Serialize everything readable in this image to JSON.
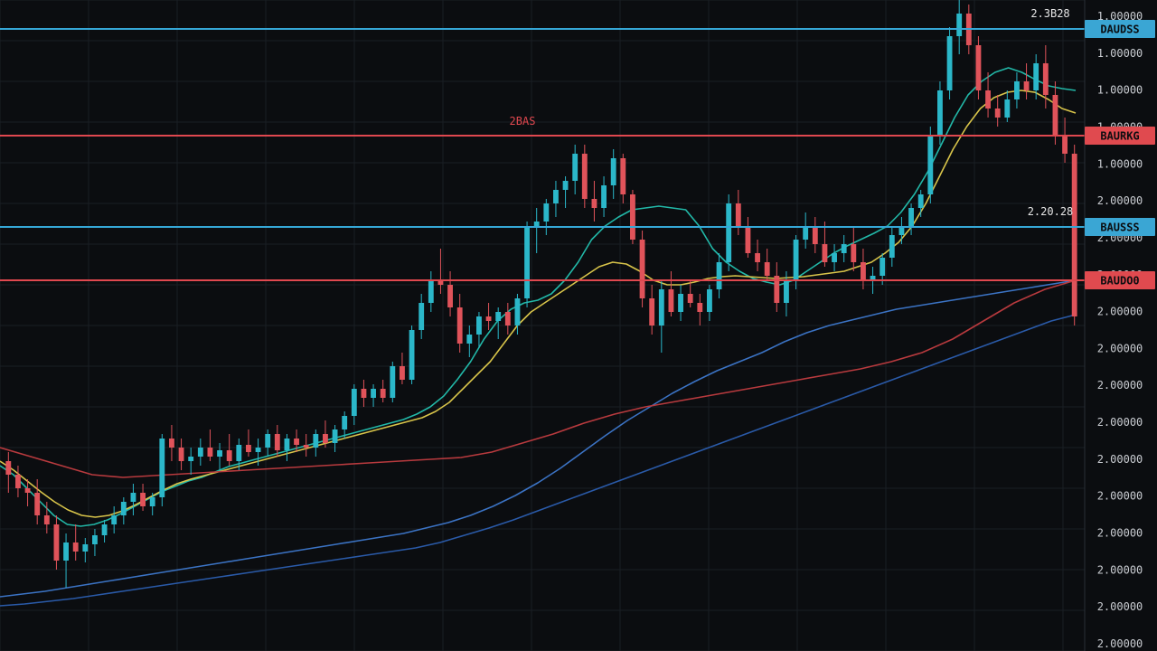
{
  "chart_data": {
    "type": "candlestick",
    "grid": true,
    "price_axis": "right",
    "colors": {
      "background": "#0b0d10",
      "grid": "#1a1e24",
      "up": "#2bb7c9",
      "down": "#e0535a",
      "level_blue": "#35a7d6",
      "level_red": "#e0484f",
      "tag_blue_bg": "#3aa6d4",
      "tag_red_bg": "#e04a4f",
      "ma_fast": "#22b8a8",
      "ma_mid": "#d8c44a",
      "ma_slow": "#3b73c4",
      "ma_red": "#b83a3e",
      "ma_long": "#2a5aa8"
    },
    "price_labels": [
      "1.00000",
      "1.00000",
      "1.00000",
      "1.00000",
      "1.00000",
      "2.00000",
      "2.00000",
      "2.00000",
      "2.00000",
      "2.00000",
      "2.00000",
      "2.00000",
      "2.00000",
      "2.00000",
      "2.00000",
      "2.00000",
      "2.00000",
      "2.00000"
    ],
    "y_range": [
      0,
      720
    ],
    "levels": [
      {
        "price": 688,
        "color": "blue",
        "tag": "DAUDSS",
        "note": "2.3B28"
      },
      {
        "price": 570,
        "color": "red",
        "tag": "BAURKG",
        "note": "2BAS"
      },
      {
        "price": 469,
        "color": "blue",
        "tag": "BAUSSS",
        "note": "2.20.28"
      },
      {
        "price": 410,
        "color": "red",
        "tag": "BAUDO0",
        "note": ""
      }
    ],
    "candles": [
      {
        "o": 210,
        "h": 220,
        "l": 175,
        "c": 195
      },
      {
        "o": 195,
        "h": 205,
        "l": 170,
        "c": 180
      },
      {
        "o": 180,
        "h": 190,
        "l": 160,
        "c": 175
      },
      {
        "o": 175,
        "h": 190,
        "l": 140,
        "c": 150
      },
      {
        "o": 150,
        "h": 165,
        "l": 130,
        "c": 140
      },
      {
        "o": 140,
        "h": 150,
        "l": 90,
        "c": 100
      },
      {
        "o": 100,
        "h": 130,
        "l": 70,
        "c": 120
      },
      {
        "o": 120,
        "h": 140,
        "l": 100,
        "c": 110
      },
      {
        "o": 110,
        "h": 125,
        "l": 98,
        "c": 118
      },
      {
        "o": 118,
        "h": 135,
        "l": 105,
        "c": 128
      },
      {
        "o": 128,
        "h": 145,
        "l": 120,
        "c": 140
      },
      {
        "o": 140,
        "h": 160,
        "l": 130,
        "c": 150
      },
      {
        "o": 150,
        "h": 170,
        "l": 140,
        "c": 165
      },
      {
        "o": 165,
        "h": 185,
        "l": 150,
        "c": 175
      },
      {
        "o": 175,
        "h": 185,
        "l": 155,
        "c": 160
      },
      {
        "o": 160,
        "h": 175,
        "l": 150,
        "c": 170
      },
      {
        "o": 170,
        "h": 240,
        "l": 160,
        "c": 235
      },
      {
        "o": 235,
        "h": 250,
        "l": 210,
        "c": 225
      },
      {
        "o": 225,
        "h": 235,
        "l": 200,
        "c": 210
      },
      {
        "o": 210,
        "h": 225,
        "l": 195,
        "c": 215
      },
      {
        "o": 215,
        "h": 235,
        "l": 205,
        "c": 225
      },
      {
        "o": 225,
        "h": 245,
        "l": 210,
        "c": 215
      },
      {
        "o": 215,
        "h": 230,
        "l": 200,
        "c": 222
      },
      {
        "o": 222,
        "h": 240,
        "l": 205,
        "c": 210
      },
      {
        "o": 210,
        "h": 235,
        "l": 200,
        "c": 228
      },
      {
        "o": 228,
        "h": 245,
        "l": 215,
        "c": 220
      },
      {
        "o": 220,
        "h": 235,
        "l": 205,
        "c": 225
      },
      {
        "o": 225,
        "h": 245,
        "l": 215,
        "c": 240
      },
      {
        "o": 240,
        "h": 250,
        "l": 215,
        "c": 222
      },
      {
        "o": 222,
        "h": 240,
        "l": 210,
        "c": 235
      },
      {
        "o": 235,
        "h": 245,
        "l": 220,
        "c": 228
      },
      {
        "o": 228,
        "h": 240,
        "l": 215,
        "c": 225
      },
      {
        "o": 225,
        "h": 245,
        "l": 215,
        "c": 240
      },
      {
        "o": 240,
        "h": 255,
        "l": 225,
        "c": 230
      },
      {
        "o": 230,
        "h": 250,
        "l": 220,
        "c": 245
      },
      {
        "o": 245,
        "h": 265,
        "l": 235,
        "c": 260
      },
      {
        "o": 260,
        "h": 295,
        "l": 250,
        "c": 290
      },
      {
        "o": 290,
        "h": 300,
        "l": 270,
        "c": 280
      },
      {
        "o": 280,
        "h": 295,
        "l": 270,
        "c": 290
      },
      {
        "o": 290,
        "h": 300,
        "l": 275,
        "c": 280
      },
      {
        "o": 280,
        "h": 320,
        "l": 275,
        "c": 315
      },
      {
        "o": 315,
        "h": 330,
        "l": 295,
        "c": 300
      },
      {
        "o": 300,
        "h": 360,
        "l": 295,
        "c": 355
      },
      {
        "o": 355,
        "h": 395,
        "l": 345,
        "c": 385
      },
      {
        "o": 385,
        "h": 420,
        "l": 375,
        "c": 410
      },
      {
        "o": 410,
        "h": 445,
        "l": 395,
        "c": 405
      },
      {
        "o": 405,
        "h": 420,
        "l": 370,
        "c": 380
      },
      {
        "o": 380,
        "h": 395,
        "l": 330,
        "c": 340
      },
      {
        "o": 340,
        "h": 360,
        "l": 325,
        "c": 350
      },
      {
        "o": 350,
        "h": 375,
        "l": 335,
        "c": 370
      },
      {
        "o": 370,
        "h": 385,
        "l": 355,
        "c": 365
      },
      {
        "o": 365,
        "h": 380,
        "l": 345,
        "c": 375
      },
      {
        "o": 375,
        "h": 385,
        "l": 350,
        "c": 360
      },
      {
        "o": 360,
        "h": 395,
        "l": 350,
        "c": 390
      },
      {
        "o": 390,
        "h": 475,
        "l": 380,
        "c": 470
      },
      {
        "o": 470,
        "h": 490,
        "l": 440,
        "c": 475
      },
      {
        "o": 475,
        "h": 500,
        "l": 460,
        "c": 495
      },
      {
        "o": 495,
        "h": 520,
        "l": 480,
        "c": 510
      },
      {
        "o": 510,
        "h": 525,
        "l": 490,
        "c": 520
      },
      {
        "o": 520,
        "h": 560,
        "l": 505,
        "c": 550
      },
      {
        "o": 550,
        "h": 560,
        "l": 490,
        "c": 500
      },
      {
        "o": 500,
        "h": 520,
        "l": 475,
        "c": 490
      },
      {
        "o": 490,
        "h": 525,
        "l": 480,
        "c": 515
      },
      {
        "o": 515,
        "h": 555,
        "l": 500,
        "c": 545
      },
      {
        "o": 545,
        "h": 550,
        "l": 495,
        "c": 505
      },
      {
        "o": 505,
        "h": 510,
        "l": 450,
        "c": 455
      },
      {
        "o": 455,
        "h": 465,
        "l": 380,
        "c": 390
      },
      {
        "o": 390,
        "h": 405,
        "l": 350,
        "c": 360
      },
      {
        "o": 360,
        "h": 410,
        "l": 330,
        "c": 400
      },
      {
        "o": 400,
        "h": 420,
        "l": 370,
        "c": 375
      },
      {
        "o": 375,
        "h": 405,
        "l": 365,
        "c": 395
      },
      {
        "o": 395,
        "h": 410,
        "l": 380,
        "c": 385
      },
      {
        "o": 385,
        "h": 395,
        "l": 360,
        "c": 375
      },
      {
        "o": 375,
        "h": 405,
        "l": 365,
        "c": 400
      },
      {
        "o": 400,
        "h": 440,
        "l": 390,
        "c": 430
      },
      {
        "o": 430,
        "h": 505,
        "l": 420,
        "c": 495
      },
      {
        "o": 495,
        "h": 510,
        "l": 460,
        "c": 470
      },
      {
        "o": 470,
        "h": 480,
        "l": 435,
        "c": 440
      },
      {
        "o": 440,
        "h": 455,
        "l": 420,
        "c": 430
      },
      {
        "o": 430,
        "h": 445,
        "l": 410,
        "c": 415
      },
      {
        "o": 415,
        "h": 430,
        "l": 375,
        "c": 385
      },
      {
        "o": 385,
        "h": 420,
        "l": 370,
        "c": 410
      },
      {
        "o": 410,
        "h": 460,
        "l": 400,
        "c": 455
      },
      {
        "o": 455,
        "h": 485,
        "l": 445,
        "c": 470
      },
      {
        "o": 470,
        "h": 480,
        "l": 440,
        "c": 450
      },
      {
        "o": 450,
        "h": 475,
        "l": 425,
        "c": 430
      },
      {
        "o": 430,
        "h": 450,
        "l": 420,
        "c": 440
      },
      {
        "o": 440,
        "h": 460,
        "l": 430,
        "c": 450
      },
      {
        "o": 450,
        "h": 470,
        "l": 420,
        "c": 430
      },
      {
        "o": 430,
        "h": 445,
        "l": 400,
        "c": 410
      },
      {
        "o": 410,
        "h": 425,
        "l": 395,
        "c": 415
      },
      {
        "o": 415,
        "h": 440,
        "l": 405,
        "c": 435
      },
      {
        "o": 435,
        "h": 470,
        "l": 425,
        "c": 460
      },
      {
        "o": 460,
        "h": 480,
        "l": 450,
        "c": 470
      },
      {
        "o": 470,
        "h": 495,
        "l": 460,
        "c": 490
      },
      {
        "o": 490,
        "h": 510,
        "l": 480,
        "c": 505
      },
      {
        "o": 505,
        "h": 580,
        "l": 495,
        "c": 570
      },
      {
        "o": 570,
        "h": 630,
        "l": 560,
        "c": 620
      },
      {
        "o": 620,
        "h": 690,
        "l": 610,
        "c": 680
      },
      {
        "o": 680,
        "h": 720,
        "l": 660,
        "c": 705
      },
      {
        "o": 705,
        "h": 715,
        "l": 660,
        "c": 670
      },
      {
        "o": 670,
        "h": 680,
        "l": 610,
        "c": 620
      },
      {
        "o": 620,
        "h": 640,
        "l": 590,
        "c": 600
      },
      {
        "o": 600,
        "h": 615,
        "l": 580,
        "c": 590
      },
      {
        "o": 590,
        "h": 620,
        "l": 585,
        "c": 610
      },
      {
        "o": 610,
        "h": 640,
        "l": 600,
        "c": 630
      },
      {
        "o": 630,
        "h": 650,
        "l": 610,
        "c": 620
      },
      {
        "o": 620,
        "h": 660,
        "l": 610,
        "c": 650
      },
      {
        "o": 650,
        "h": 670,
        "l": 600,
        "c": 615
      },
      {
        "o": 615,
        "h": 630,
        "l": 560,
        "c": 570
      },
      {
        "o": 570,
        "h": 590,
        "l": 540,
        "c": 550
      },
      {
        "o": 550,
        "h": 560,
        "l": 360,
        "c": 370
      }
    ],
    "moving_averages": [
      {
        "color": "ma_fast",
        "values": [
          205,
          195,
          180,
          165,
          150,
          140,
          138,
          140,
          145,
          152,
          160,
          168,
          176,
          182,
          188,
          192,
          198,
          204,
          208,
          212,
          216,
          220,
          224,
          228,
          232,
          236,
          240,
          244,
          248,
          252,
          256,
          262,
          270,
          282,
          300,
          320,
          345,
          365,
          378,
          385,
          388,
          395,
          410,
          430,
          455,
          470,
          480,
          488,
          490,
          492,
          490,
          488,
          470,
          445,
          430,
          420,
          412,
          408,
          405,
          410,
          420,
          430,
          440,
          448,
          455,
          462,
          470,
          485,
          505,
          530,
          560,
          590,
          615,
          630,
          640,
          645,
          640,
          632,
          625,
          622,
          620
        ]
      },
      {
        "color": "ma_mid",
        "values": [
          210,
          200,
          188,
          176,
          165,
          156,
          150,
          148,
          150,
          155,
          162,
          170,
          178,
          185,
          190,
          194,
          198,
          202,
          206,
          210,
          214,
          218,
          222,
          226,
          230,
          234,
          238,
          242,
          246,
          250,
          254,
          258,
          265,
          275,
          290,
          305,
          320,
          340,
          360,
          375,
          385,
          395,
          405,
          415,
          425,
          430,
          428,
          420,
          410,
          405,
          405,
          408,
          412,
          414,
          415,
          414,
          413,
          412,
          413,
          414,
          416,
          418,
          420,
          425,
          430,
          440,
          452,
          470,
          495,
          525,
          555,
          580,
          600,
          612,
          618,
          620,
          618,
          610,
          600,
          595
        ]
      },
      {
        "color": "ma_slow",
        "values": [
          60,
          63,
          66,
          70,
          74,
          78,
          82,
          86,
          90,
          94,
          98,
          102,
          106,
          110,
          114,
          118,
          122,
          126,
          130,
          136,
          142,
          150,
          160,
          172,
          186,
          202,
          220,
          238,
          255,
          270,
          285,
          298,
          310,
          320,
          330,
          342,
          352,
          360,
          366,
          372,
          378,
          382,
          386,
          390,
          394,
          398,
          402,
          406,
          410
        ]
      },
      {
        "color": "ma_red",
        "values": [
          225,
          215,
          205,
          195,
          192,
          194,
          196,
          198,
          200,
          202,
          204,
          206,
          208,
          210,
          212,
          214,
          220,
          230,
          240,
          252,
          262,
          270,
          276,
          282,
          288,
          294,
          300,
          306,
          312,
          320,
          330,
          345,
          365,
          385,
          400,
          410
        ]
      },
      {
        "color": "ma_long",
        "values": [
          50,
          52,
          55,
          58,
          62,
          66,
          70,
          74,
          78,
          82,
          86,
          90,
          94,
          98,
          102,
          106,
          110,
          114,
          120,
          128,
          136,
          145,
          155,
          165,
          175,
          185,
          195,
          205,
          215,
          225,
          235,
          245,
          255,
          265,
          275,
          285,
          295,
          305,
          315,
          325,
          335,
          345,
          355,
          365,
          372
        ]
      }
    ]
  }
}
